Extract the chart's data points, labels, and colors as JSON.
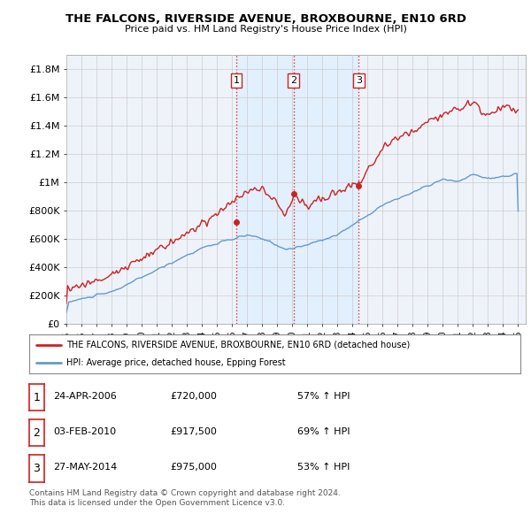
{
  "title": "THE FALCONS, RIVERSIDE AVENUE, BROXBOURNE, EN10 6RD",
  "subtitle": "Price paid vs. HM Land Registry's House Price Index (HPI)",
  "ylim": [
    0,
    1900000
  ],
  "yticks": [
    0,
    200000,
    400000,
    600000,
    800000,
    1000000,
    1200000,
    1400000,
    1600000,
    1800000
  ],
  "ytick_labels": [
    "£0",
    "£200K",
    "£400K",
    "£600K",
    "£800K",
    "£1M",
    "£1.2M",
    "£1.4M",
    "£1.6M",
    "£1.8M"
  ],
  "red_line_color": "#cc2222",
  "blue_line_color": "#6699cc",
  "sale_dates": [
    2006.29,
    2010.09,
    2014.41
  ],
  "sale_prices": [
    720000,
    917500,
    975000
  ],
  "sale_labels": [
    "1",
    "2",
    "3"
  ],
  "vline_color": "#cc2222",
  "shade_color": "#ddeeff",
  "legend_red_label": "THE FALCONS, RIVERSIDE AVENUE, BROXBOURNE, EN10 6RD (detached house)",
  "legend_blue_label": "HPI: Average price, detached house, Epping Forest",
  "table_rows": [
    [
      "1",
      "24-APR-2006",
      "£720,000",
      "57% ↑ HPI"
    ],
    [
      "2",
      "03-FEB-2010",
      "£917,500",
      "69% ↑ HPI"
    ],
    [
      "3",
      "27-MAY-2014",
      "£975,000",
      "53% ↑ HPI"
    ]
  ],
  "footnote": "Contains HM Land Registry data © Crown copyright and database right 2024.\nThis data is licensed under the Open Government Licence v3.0.",
  "background_color": "#ffffff",
  "plot_bg_color": "#eef3fa",
  "grid_color": "#cccccc"
}
